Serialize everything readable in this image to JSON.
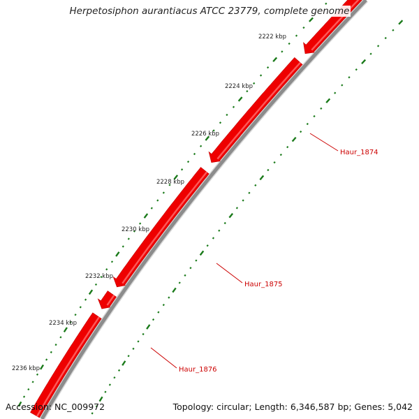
{
  "title": "Herpetosiphon aurantiacus ATCC 23779, complete genome",
  "footer": {
    "accession": "Accession: NC_009972",
    "summary": "Topology: circular; Length: 6,346,587 bp; Genes: 5,042"
  },
  "colors": {
    "backbone": "#8c8c8c",
    "gene": "#ee0000",
    "gene_highlight": "#ff6666",
    "tick": "#1a7a1a",
    "gene_label": "#cc0000",
    "ruler_label": "#222222"
  },
  "ruler": {
    "labels": [
      "2222 kbp",
      "2224 kbp",
      "2226 kbp",
      "2228 kbp",
      "2230 kbp",
      "2232 kbp",
      "2234 kbp",
      "2236 kbp"
    ]
  },
  "genes": [
    {
      "name": "Haur_1874"
    },
    {
      "name": "Haur_1875"
    },
    {
      "name": "Haur_1876"
    }
  ]
}
